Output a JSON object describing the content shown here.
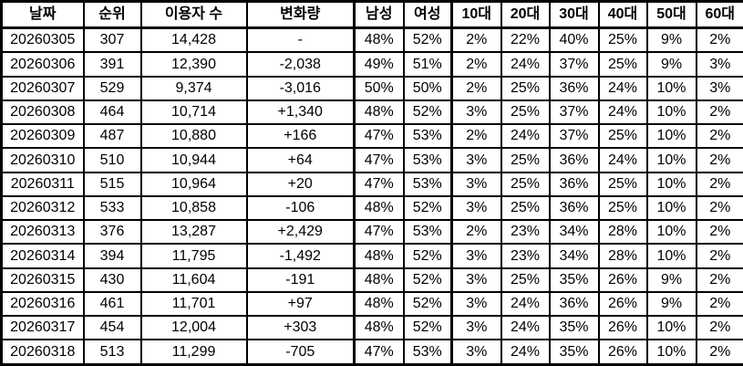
{
  "colors": {
    "text": "#000000",
    "border": "#000000",
    "background": "#ffffff",
    "positive_change_red": "#ff0000",
    "negative_change_blue": "#0c1aff",
    "saturday_date_blue": "#0c1aff",
    "sunday_date_red": "#ff0000"
  },
  "chart_data": {
    "type": "table",
    "columns": [
      "날짜",
      "순위",
      "이용자 수",
      "변화량",
      "남성",
      "여성",
      "10대",
      "20대",
      "30대",
      "40대",
      "50대",
      "60대"
    ],
    "column_keys": [
      "date",
      "rank",
      "users",
      "change",
      "male",
      "female",
      "age10",
      "age20",
      "age30",
      "age40",
      "age50",
      "age60"
    ],
    "rows": [
      {
        "cells": [
          "20260305",
          "307",
          "14,428",
          "-",
          "48%",
          "52%",
          "2%",
          "22%",
          "40%",
          "25%",
          "9%",
          "2%"
        ],
        "date_color": "black",
        "change_color": "black"
      },
      {
        "cells": [
          "20260306",
          "391",
          "12,390",
          "-2,038",
          "49%",
          "51%",
          "2%",
          "24%",
          "37%",
          "25%",
          "9%",
          "3%"
        ],
        "date_color": "black",
        "change_color": "blue"
      },
      {
        "cells": [
          "20260307",
          "529",
          "9,374",
          "-3,016",
          "50%",
          "50%",
          "2%",
          "25%",
          "36%",
          "24%",
          "10%",
          "3%"
        ],
        "date_color": "blue",
        "change_color": "blue"
      },
      {
        "cells": [
          "20260308",
          "464",
          "10,714",
          "+1,340",
          "48%",
          "52%",
          "3%",
          "25%",
          "37%",
          "24%",
          "10%",
          "2%"
        ],
        "date_color": "red",
        "change_color": "red"
      },
      {
        "cells": [
          "20260309",
          "487",
          "10,880",
          "+166",
          "47%",
          "53%",
          "2%",
          "24%",
          "37%",
          "25%",
          "10%",
          "2%"
        ],
        "date_color": "black",
        "change_color": "red"
      },
      {
        "cells": [
          "20260310",
          "510",
          "10,944",
          "+64",
          "47%",
          "53%",
          "3%",
          "25%",
          "36%",
          "24%",
          "10%",
          "2%"
        ],
        "date_color": "black",
        "change_color": "red"
      },
      {
        "cells": [
          "20260311",
          "515",
          "10,964",
          "+20",
          "47%",
          "53%",
          "3%",
          "25%",
          "36%",
          "25%",
          "10%",
          "2%"
        ],
        "date_color": "black",
        "change_color": "red"
      },
      {
        "cells": [
          "20260312",
          "533",
          "10,858",
          "-106",
          "48%",
          "52%",
          "3%",
          "25%",
          "36%",
          "25%",
          "10%",
          "2%"
        ],
        "date_color": "black",
        "change_color": "blue"
      },
      {
        "cells": [
          "20260313",
          "376",
          "13,287",
          "+2,429",
          "47%",
          "53%",
          "2%",
          "23%",
          "34%",
          "28%",
          "10%",
          "2%"
        ],
        "date_color": "black",
        "change_color": "red"
      },
      {
        "cells": [
          "20260314",
          "394",
          "11,795",
          "-1,492",
          "48%",
          "52%",
          "3%",
          "23%",
          "34%",
          "28%",
          "10%",
          "2%"
        ],
        "date_color": "blue",
        "change_color": "blue"
      },
      {
        "cells": [
          "20260315",
          "430",
          "11,604",
          "-191",
          "48%",
          "52%",
          "3%",
          "25%",
          "35%",
          "26%",
          "9%",
          "2%"
        ],
        "date_color": "red",
        "change_color": "blue"
      },
      {
        "cells": [
          "20260316",
          "461",
          "11,701",
          "+97",
          "48%",
          "52%",
          "3%",
          "24%",
          "36%",
          "26%",
          "9%",
          "2%"
        ],
        "date_color": "black",
        "change_color": "red"
      },
      {
        "cells": [
          "20260317",
          "454",
          "12,004",
          "+303",
          "48%",
          "52%",
          "3%",
          "24%",
          "35%",
          "26%",
          "10%",
          "2%"
        ],
        "date_color": "black",
        "change_color": "red"
      },
      {
        "cells": [
          "20260318",
          "513",
          "11,299",
          "-705",
          "47%",
          "53%",
          "3%",
          "24%",
          "35%",
          "26%",
          "10%",
          "2%"
        ],
        "date_color": "black",
        "change_color": "blue"
      }
    ]
  }
}
